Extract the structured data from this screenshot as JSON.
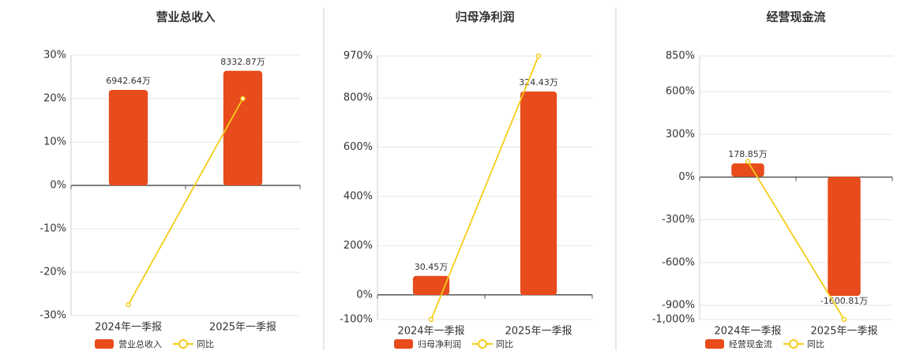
{
  "chart_data": [
    {
      "type": "bar",
      "title": "营业总收入",
      "categories": [
        "2024年一季报",
        "2025年一季报"
      ],
      "series": [
        {
          "name": "营业总收入",
          "type": "bar",
          "color": "#e84c1c",
          "axis": "y2",
          "values": [
            6942.64,
            8332.87
          ],
          "value_labels": [
            "6942.64万",
            "8332.87万"
          ]
        },
        {
          "name": "同比",
          "type": "line",
          "color": "#f5cc18",
          "values": [
            -27.5,
            20
          ]
        }
      ],
      "ylim": [
        -30,
        30
      ],
      "yticks": [
        {
          "value": 30,
          "label": "30%"
        },
        {
          "value": 20,
          "label": "20%"
        },
        {
          "value": 10,
          "label": "10%"
        },
        {
          "value": 0,
          "label": "0%"
        },
        {
          "value": -10,
          "label": "-10%"
        },
        {
          "value": -20,
          "label": "-20%"
        },
        {
          "value": -30,
          "label": "-30%"
        }
      ],
      "y2lim": [
        -9467,
        9467
      ],
      "grid": true
    },
    {
      "type": "bar",
      "title": "归母净利润",
      "categories": [
        "2024年一季报",
        "2025年一季报"
      ],
      "series": [
        {
          "name": "归母净利润",
          "type": "bar",
          "color": "#e84c1c",
          "axis": "y2",
          "values": [
            30.45,
            324.43
          ],
          "value_labels": [
            "30.45万",
            "324.43万"
          ]
        },
        {
          "name": "同比",
          "type": "line",
          "color": "#f5cc18",
          "values": [
            -100,
            970
          ]
        }
      ],
      "ylim": [
        -100,
        970
      ],
      "yticks": [
        {
          "value": 970,
          "label": "970%"
        },
        {
          "value": 800,
          "label": "800%"
        },
        {
          "value": 600,
          "label": "600%"
        },
        {
          "value": 400,
          "label": "400%"
        },
        {
          "value": 200,
          "label": "200%"
        },
        {
          "value": 0,
          "label": "0%"
        },
        {
          "value": -100,
          "label": "-100%"
        }
      ],
      "y2lim": [
        -39,
        381
      ],
      "grid": true
    },
    {
      "type": "bar",
      "title": "经营现金流",
      "categories": [
        "2024年一季报",
        "2025年一季报"
      ],
      "series": [
        {
          "name": "经营现金流",
          "type": "bar",
          "color": "#e84c1c",
          "axis": "y2",
          "values": [
            178.85,
            -1600.81
          ],
          "value_labels": [
            "178.85万",
            "-1600.81万"
          ]
        },
        {
          "name": "同比",
          "type": "line",
          "color": "#f5cc18",
          "values": [
            110,
            -1000
          ]
        }
      ],
      "ylim": [
        -1000,
        850
      ],
      "yticks": [
        {
          "value": 850,
          "label": "850%"
        },
        {
          "value": 600,
          "label": "600%"
        },
        {
          "value": 300,
          "label": "300%"
        },
        {
          "value": 0,
          "label": "0%"
        },
        {
          "value": -300,
          "label": "-300%"
        },
        {
          "value": -600,
          "label": "-600%"
        },
        {
          "value": -900,
          "label": "-900%"
        },
        {
          "value": -1000,
          "label": "-1,000%"
        }
      ],
      "y2lim": [
        -1919,
        1622
      ],
      "grid": true
    }
  ]
}
